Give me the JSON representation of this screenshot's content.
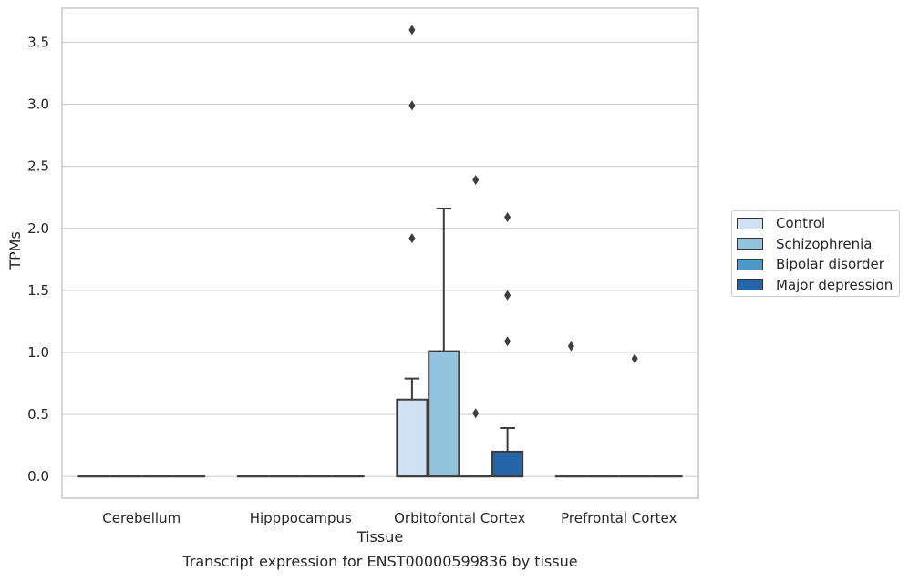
{
  "chart_data": {
    "type": "box",
    "title": "Transcript expression for ENST00000599836 by tissue",
    "xlabel": "Tissue",
    "ylabel": "TPMs",
    "ylim": [
      -0.175,
      3.775
    ],
    "yticks": [
      "0.0",
      "0.5",
      "1.0",
      "1.5",
      "2.0",
      "2.5",
      "3.0",
      "3.5"
    ],
    "grid": true,
    "legend_position": "right",
    "categories": [
      "Cerebellum",
      "Hipppocampus",
      "Orbitofontal Cortex",
      "Prefrontal Cortex"
    ],
    "series": [
      {
        "name": "Control",
        "color": "#cfe1f2",
        "boxes": [
          {
            "category": "Cerebellum",
            "q1": 0,
            "median": 0,
            "q3": 0,
            "whisker_low": 0,
            "whisker_high": 0,
            "outliers": []
          },
          {
            "category": "Hipppocampus",
            "q1": 0,
            "median": 0,
            "q3": 0,
            "whisker_low": 0,
            "whisker_high": 0,
            "outliers": []
          },
          {
            "category": "Orbitofontal Cortex",
            "q1": 0,
            "median": 0,
            "q3": 0.62,
            "whisker_low": 0,
            "whisker_high": 0.79,
            "outliers": [
              1.92,
              2.99,
              3.6
            ]
          },
          {
            "category": "Prefrontal Cortex",
            "q1": 0,
            "median": 0,
            "q3": 0,
            "whisker_low": 0,
            "whisker_high": 0,
            "outliers": [
              1.05
            ]
          }
        ]
      },
      {
        "name": "Schizophrenia",
        "color": "#93c4de",
        "boxes": [
          {
            "category": "Cerebellum",
            "q1": 0,
            "median": 0,
            "q3": 0,
            "whisker_low": 0,
            "whisker_high": 0,
            "outliers": []
          },
          {
            "category": "Hipppocampus",
            "q1": 0,
            "median": 0,
            "q3": 0,
            "whisker_low": 0,
            "whisker_high": 0,
            "outliers": []
          },
          {
            "category": "Orbitofontal Cortex",
            "q1": 0,
            "median": 0,
            "q3": 1.01,
            "whisker_low": 0,
            "whisker_high": 2.16,
            "outliers": []
          },
          {
            "category": "Prefrontal Cortex",
            "q1": 0,
            "median": 0,
            "q3": 0,
            "whisker_low": 0,
            "whisker_high": 0,
            "outliers": []
          }
        ]
      },
      {
        "name": "Bipolar disorder",
        "color": "#4b98c9",
        "boxes": [
          {
            "category": "Cerebellum",
            "q1": 0,
            "median": 0,
            "q3": 0,
            "whisker_low": 0,
            "whisker_high": 0,
            "outliers": []
          },
          {
            "category": "Hipppocampus",
            "q1": 0,
            "median": 0,
            "q3": 0,
            "whisker_low": 0,
            "whisker_high": 0,
            "outliers": []
          },
          {
            "category": "Orbitofontal Cortex",
            "q1": 0,
            "median": 0,
            "q3": 0,
            "whisker_low": 0,
            "whisker_high": 0,
            "outliers": [
              0.51,
              2.39
            ]
          },
          {
            "category": "Prefrontal Cortex",
            "q1": 0,
            "median": 0,
            "q3": 0,
            "whisker_low": 0,
            "whisker_high": 0,
            "outliers": [
              0.95
            ]
          }
        ]
      },
      {
        "name": "Major depression",
        "color": "#2464a8",
        "boxes": [
          {
            "category": "Cerebellum",
            "q1": 0,
            "median": 0,
            "q3": 0,
            "whisker_low": 0,
            "whisker_high": 0,
            "outliers": []
          },
          {
            "category": "Hipppocampus",
            "q1": 0,
            "median": 0,
            "q3": 0,
            "whisker_low": 0,
            "whisker_high": 0,
            "outliers": []
          },
          {
            "category": "Orbitofontal Cortex",
            "q1": 0,
            "median": 0,
            "q3": 0.2,
            "whisker_low": 0,
            "whisker_high": 0.39,
            "outliers": [
              1.09,
              1.46,
              2.09
            ]
          },
          {
            "category": "Prefrontal Cortex",
            "q1": 0,
            "median": 0,
            "q3": 0,
            "whisker_low": 0,
            "whisker_high": 0,
            "outliers": []
          }
        ]
      }
    ]
  }
}
